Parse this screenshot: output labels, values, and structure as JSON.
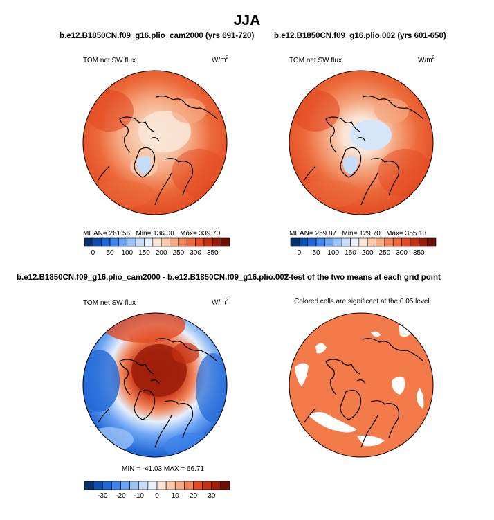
{
  "page": {
    "title": "JJA"
  },
  "panels": {
    "top_left": {
      "title": "b.e12.B1850CN.f09_g16.plio_cam2000 (yrs 691-720)",
      "left_label": "TOM net SW flux",
      "units_base": "W/m",
      "units_exp": "2",
      "stats": {
        "mean_label": "MEAN=",
        "mean": "261.56",
        "min_label": "Min=",
        "min": "136.00",
        "max_label": "Max=",
        "max": "339.70"
      }
    },
    "top_right": {
      "title": "b.e12.B1850CN.f09_g16.plio.002 (yrs 601-650)",
      "left_label": "TOM net SW flux",
      "units_base": "W/m",
      "units_exp": "2",
      "stats": {
        "mean_label": "MEAN=",
        "mean": "259.87",
        "min_label": "Min=",
        "min": "129.70",
        "max_label": "Max=",
        "max": "355.13"
      }
    },
    "bottom_left": {
      "title": "b.e12.B1850CN.f09_g16.plio_cam2000 - b.e12.B1850CN.f09_g16.plio.002",
      "left_label": "TOM net SW flux",
      "units_base": "W/m",
      "units_exp": "2",
      "stats_text": "MIN = -41.03 MAX =  66.71"
    },
    "bottom_right": {
      "title": "T-test of the two means at each grid point",
      "subtitle": "Colored cells are significant at the 0.05 level"
    }
  },
  "colors": {
    "abs_scale": [
      "#08306b",
      "#0b4fb0",
      "#2166d6",
      "#3f83ec",
      "#6aa4f3",
      "#9cc3f7",
      "#c6dcf8",
      "#e7f0fb",
      "#fbe4d4",
      "#f8c9ab",
      "#f5a882",
      "#f1855a",
      "#ec6a3a",
      "#e34a22",
      "#c53212",
      "#9c1d0a",
      "#6e0f05"
    ],
    "diff_scale": [
      "#08306b",
      "#0b4fb0",
      "#2166d6",
      "#3f83ec",
      "#6aa4f3",
      "#9cc3f7",
      "#c6dcf8",
      "#e7f0fb",
      "#fbe4d4",
      "#f8c9ab",
      "#f5a882",
      "#f1855a",
      "#e34a22",
      "#c53212",
      "#9c1d0a",
      "#6e0f05"
    ],
    "significant": "#f37b4a"
  },
  "chart_data": [
    {
      "type": "heatmap",
      "projection": "north polar stereographic",
      "title": "b.e12.B1850CN.f09_g16.plio_cam2000 (yrs 691-720)",
      "variable": "TOM net SW flux",
      "units": "W/m2",
      "mean": 261.56,
      "min": 136.0,
      "max": 339.7,
      "colorbar": {
        "levels": [
          0,
          25,
          50,
          75,
          100,
          125,
          150,
          175,
          200,
          225,
          250,
          275,
          300,
          325,
          350
        ],
        "tick_labels": [
          "0",
          "50",
          "100",
          "150",
          "200",
          "250",
          "300",
          "350"
        ],
        "ticks": [
          0,
          50,
          100,
          150,
          200,
          250,
          300,
          350
        ]
      }
    },
    {
      "type": "heatmap",
      "projection": "north polar stereographic",
      "title": "b.e12.B1850CN.f09_g16.plio.002 (yrs 601-650)",
      "variable": "TOM net SW flux",
      "units": "W/m2",
      "mean": 259.87,
      "min": 129.7,
      "max": 355.13,
      "colorbar": {
        "levels": [
          0,
          25,
          50,
          75,
          100,
          125,
          150,
          175,
          200,
          225,
          250,
          275,
          300,
          325,
          350
        ],
        "tick_labels": [
          "0",
          "50",
          "100",
          "150",
          "200",
          "250",
          "300",
          "350"
        ],
        "ticks": [
          0,
          50,
          100,
          150,
          200,
          250,
          300,
          350
        ]
      }
    },
    {
      "type": "heatmap",
      "projection": "north polar stereographic",
      "title": "b.e12.B1850CN.f09_g16.plio_cam2000 - b.e12.B1850CN.f09_g16.plio.002",
      "variable": "TOM net SW flux",
      "units": "W/m2",
      "min": -41.03,
      "max": 66.71,
      "colorbar": {
        "levels": [
          -35,
          -30,
          -25,
          -20,
          -15,
          -10,
          -5,
          0,
          5,
          10,
          15,
          20,
          25,
          30,
          35
        ],
        "tick_labels": [
          "-30",
          "-20",
          "-10",
          "0",
          "10",
          "20",
          "30"
        ],
        "ticks": [
          -30,
          -20,
          -10,
          0,
          10,
          20,
          30
        ]
      }
    },
    {
      "type": "heatmap",
      "projection": "north polar stereographic",
      "title": "T-test of the two means at each grid point",
      "note": "Colored cells are significant at the 0.05 level",
      "significance_level": 0.05
    }
  ]
}
